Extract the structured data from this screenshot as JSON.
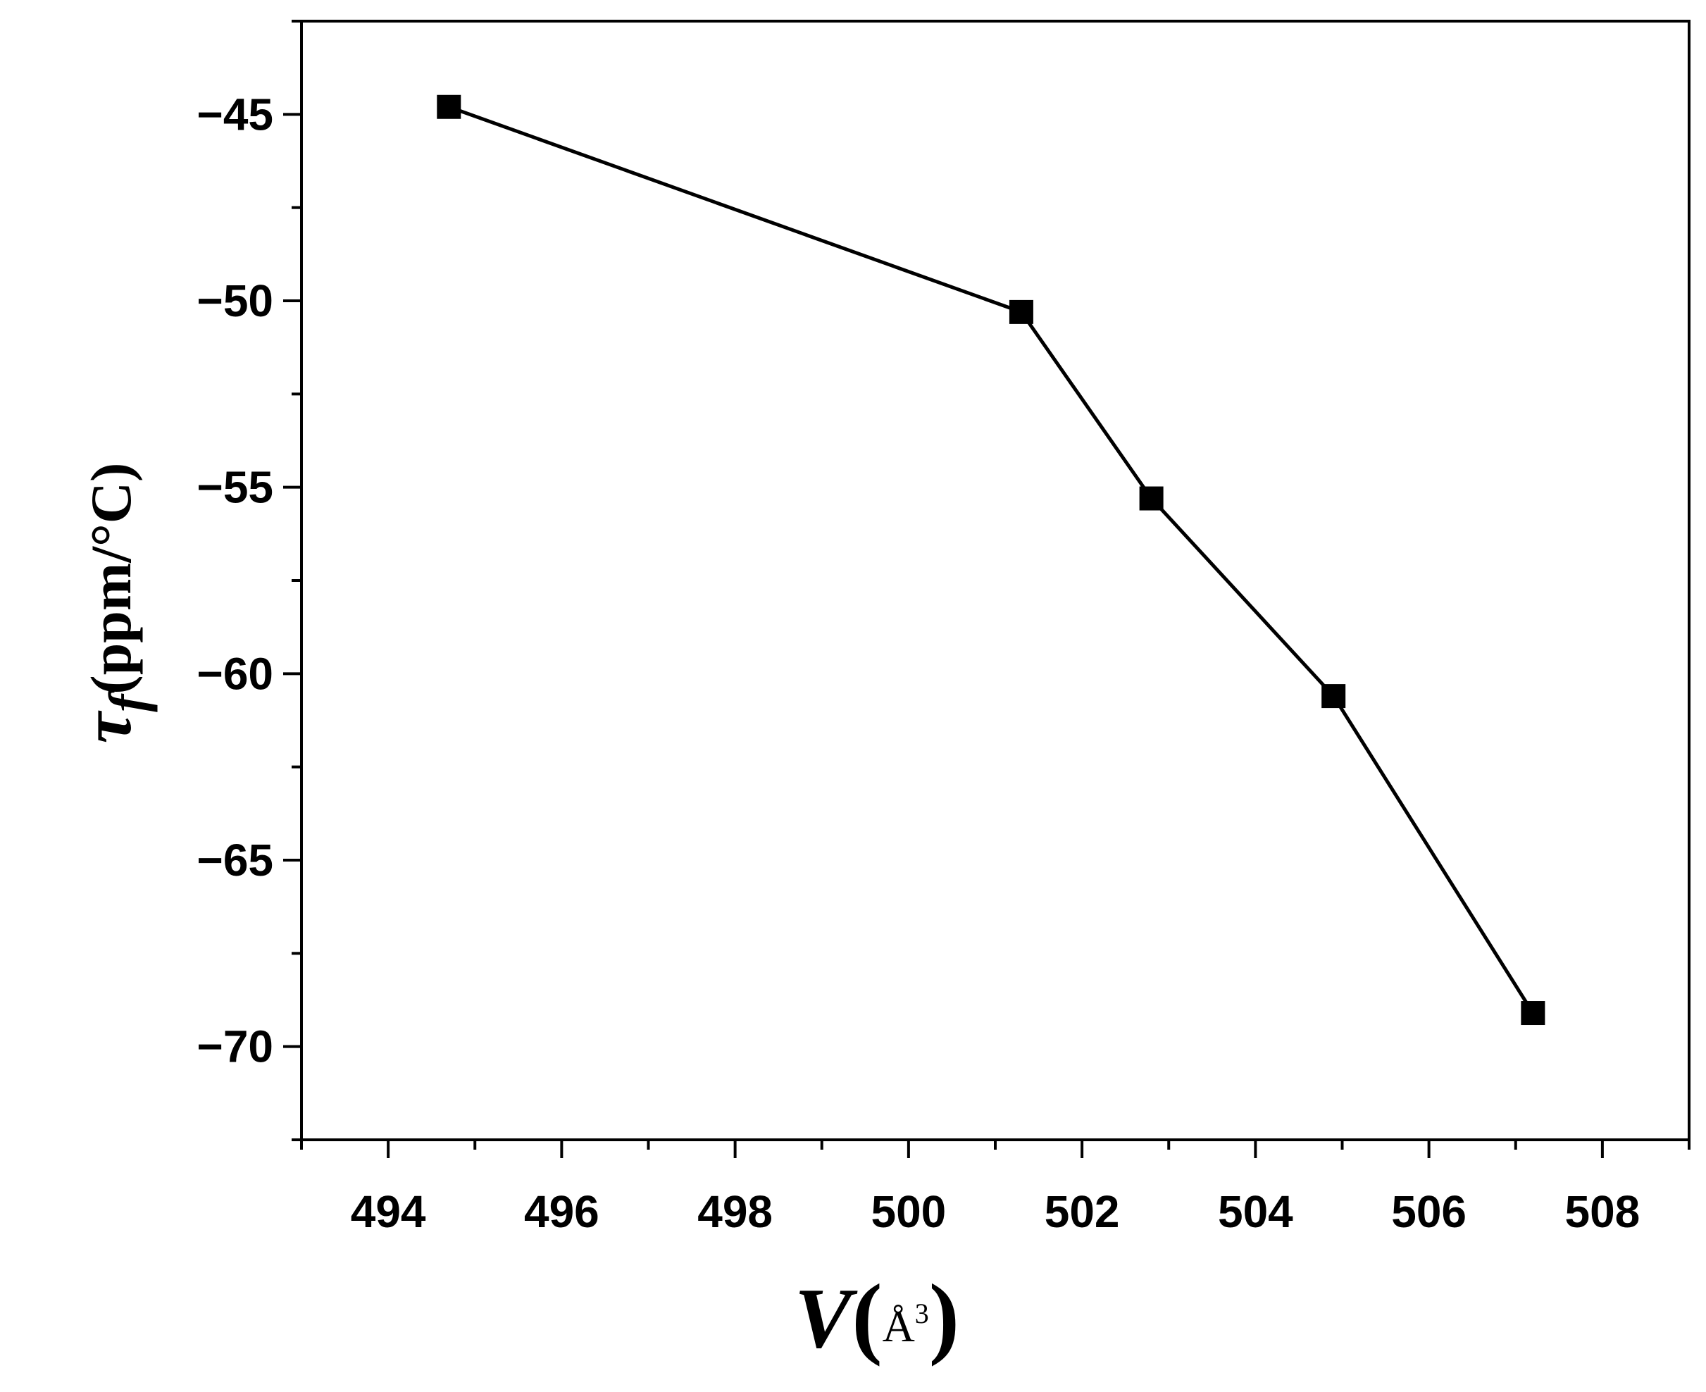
{
  "chart_data": {
    "type": "line",
    "xlabel_var": "V",
    "xlabel_unit_base": "Å",
    "xlabel_unit_sup": "3",
    "ylabel_sym": "τ",
    "ylabel_sub": "f",
    "ylabel_unit": "(ppm/°C)",
    "xlim": [
      493,
      509
    ],
    "ylim": [
      -72.5,
      -42.5
    ],
    "xticks": [
      494,
      496,
      498,
      500,
      502,
      504,
      506,
      508
    ],
    "yticks": [
      -45,
      -50,
      -55,
      -60,
      -65,
      -70
    ],
    "ytick_labels": [
      "−45",
      "−50",
      "−55",
      "−60",
      "−65",
      "−70"
    ],
    "series": [
      {
        "marker": "square",
        "color": "#000000",
        "x": [
          494.7,
          501.3,
          502.8,
          504.9,
          507.2
        ],
        "y": [
          -44.8,
          -50.3,
          -55.3,
          -60.6,
          -69.1
        ]
      }
    ],
    "grid": false,
    "legend": "none"
  }
}
